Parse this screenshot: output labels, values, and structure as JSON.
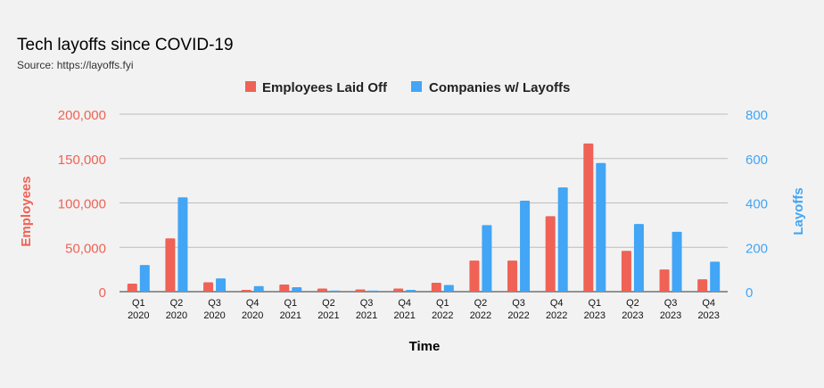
{
  "chart_data": {
    "type": "bar",
    "title": "Tech layoffs since COVID-19",
    "subtitle": "Source: https://layoffs.fyi",
    "xlabel": "Time",
    "ylabel_left": "Employees",
    "ylabel_right": "Layoffs",
    "categories": [
      [
        "Q1",
        "2020"
      ],
      [
        "Q2",
        "2020"
      ],
      [
        "Q3",
        "2020"
      ],
      [
        "Q4",
        "2020"
      ],
      [
        "Q1",
        "2021"
      ],
      [
        "Q2",
        "2021"
      ],
      [
        "Q3",
        "2021"
      ],
      [
        "Q4",
        "2021"
      ],
      [
        "Q1",
        "2022"
      ],
      [
        "Q2",
        "2022"
      ],
      [
        "Q3",
        "2022"
      ],
      [
        "Q4",
        "2022"
      ],
      [
        "Q1",
        "2023"
      ],
      [
        "Q2",
        "2023"
      ],
      [
        "Q3",
        "2023"
      ],
      [
        "Q4",
        "2023"
      ]
    ],
    "series": [
      {
        "name": "Employees Laid Off",
        "axis": "left",
        "color": "#ef6255",
        "values": [
          9000,
          60000,
          10500,
          2000,
          8000,
          3500,
          2500,
          3500,
          10000,
          35000,
          35000,
          85000,
          167000,
          46000,
          25000,
          14000
        ]
      },
      {
        "name": "Companies w/ Layoffs",
        "axis": "right",
        "color": "#42a5f5",
        "values": [
          120,
          425,
          60,
          25,
          20,
          5,
          5,
          8,
          30,
          300,
          410,
          470,
          580,
          305,
          270,
          135
        ]
      }
    ],
    "y_left": {
      "range": [
        0,
        200000
      ],
      "ticks": [
        "0",
        "50,000",
        "100,000",
        "150,000",
        "200,000"
      ],
      "color": "#ef6255"
    },
    "y_right": {
      "range": [
        0,
        800
      ],
      "ticks": [
        "0",
        "200",
        "400",
        "600",
        "800"
      ],
      "color": "#42a5f5"
    },
    "grid": true,
    "legend_position": "top-center"
  }
}
